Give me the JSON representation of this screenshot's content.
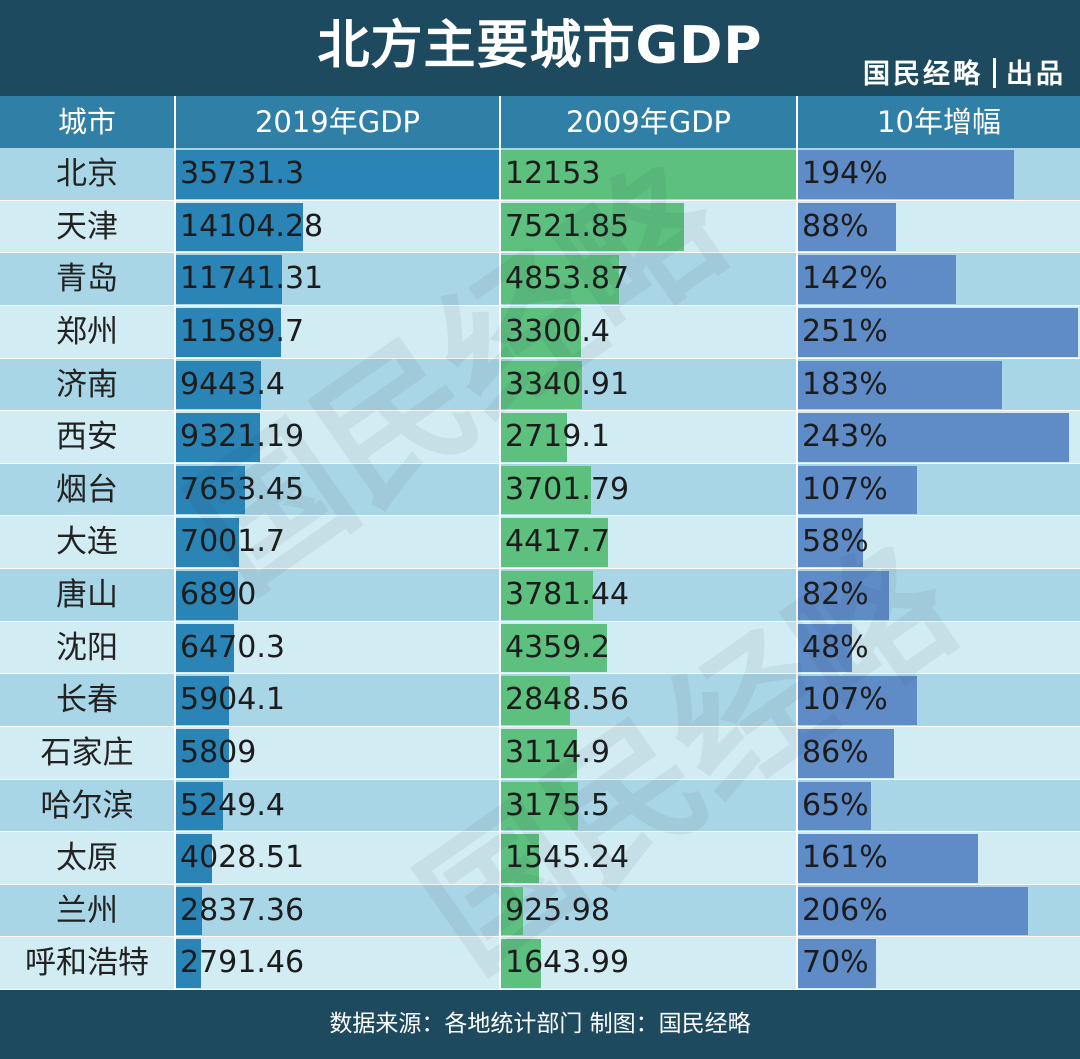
{
  "header": {
    "title": "北方主要城市GDP",
    "brand_left": "国民经略",
    "brand_right": "出品"
  },
  "footer": {
    "source": "数据来源：各地统计部门  制图：国民经略"
  },
  "colors": {
    "header_bg": "#1d4a5e",
    "column_header_bg": "#2f7fa6",
    "bar_2019": "#2b84b6",
    "bar_2009": "#5dc07f",
    "bar_growth": "#5f8bc7",
    "row_dark": "#a9d6e6",
    "row_light": "#d2ecf4"
  },
  "watermark_icon": "guomin-jinglue-watermark-icon",
  "chart_data": {
    "type": "table",
    "title": "北方主要城市GDP",
    "columns": [
      "城市",
      "2019年GDP",
      "2009年GDP",
      "10年增幅"
    ],
    "rows": [
      {
        "city": "北京",
        "gdp2019": 35731.3,
        "gdp2019_label": "35731.3",
        "gdp2009": 12153,
        "gdp2009_label": "12153",
        "growth": 194,
        "growth_label": "194%"
      },
      {
        "city": "天津",
        "gdp2019": 14104.28,
        "gdp2019_label": "14104.28",
        "gdp2009": 7521.85,
        "gdp2009_label": "7521.85",
        "growth": 88,
        "growth_label": "88%"
      },
      {
        "city": "青岛",
        "gdp2019": 11741.31,
        "gdp2019_label": "11741.31",
        "gdp2009": 4853.87,
        "gdp2009_label": "4853.87",
        "growth": 142,
        "growth_label": "142%"
      },
      {
        "city": "郑州",
        "gdp2019": 11589.7,
        "gdp2019_label": "11589.7",
        "gdp2009": 3300.4,
        "gdp2009_label": "3300.4",
        "growth": 251,
        "growth_label": "251%"
      },
      {
        "city": "济南",
        "gdp2019": 9443.4,
        "gdp2019_label": "9443.4",
        "gdp2009": 3340.91,
        "gdp2009_label": "3340.91",
        "growth": 183,
        "growth_label": "183%"
      },
      {
        "city": "西安",
        "gdp2019": 9321.19,
        "gdp2019_label": "9321.19",
        "gdp2009": 2719.1,
        "gdp2009_label": "2719.1",
        "growth": 243,
        "growth_label": "243%"
      },
      {
        "city": "烟台",
        "gdp2019": 7653.45,
        "gdp2019_label": "7653.45",
        "gdp2009": 3701.79,
        "gdp2009_label": "3701.79",
        "growth": 107,
        "growth_label": "107%"
      },
      {
        "city": "大连",
        "gdp2019": 7001.7,
        "gdp2019_label": "7001.7",
        "gdp2009": 4417.7,
        "gdp2009_label": "4417.7",
        "growth": 58,
        "growth_label": "58%"
      },
      {
        "city": "唐山",
        "gdp2019": 6890,
        "gdp2019_label": "6890",
        "gdp2009": 3781.44,
        "gdp2009_label": "3781.44",
        "growth": 82,
        "growth_label": "82%"
      },
      {
        "city": "沈阳",
        "gdp2019": 6470.3,
        "gdp2019_label": "6470.3",
        "gdp2009": 4359.2,
        "gdp2009_label": "4359.2",
        "growth": 48,
        "growth_label": "48%"
      },
      {
        "city": "长春",
        "gdp2019": 5904.1,
        "gdp2019_label": "5904.1",
        "gdp2009": 2848.56,
        "gdp2009_label": "2848.56",
        "growth": 107,
        "growth_label": "107%"
      },
      {
        "city": "石家庄",
        "gdp2019": 5809,
        "gdp2019_label": "5809",
        "gdp2009": 3114.9,
        "gdp2009_label": "3114.9",
        "growth": 86,
        "growth_label": "86%"
      },
      {
        "city": "哈尔滨",
        "gdp2019": 5249.4,
        "gdp2019_label": "5249.4",
        "gdp2009": 3175.5,
        "gdp2009_label": "3175.5",
        "growth": 65,
        "growth_label": "65%"
      },
      {
        "city": "太原",
        "gdp2019": 4028.51,
        "gdp2019_label": "4028.51",
        "gdp2009": 1545.24,
        "gdp2009_label": "1545.24",
        "growth": 161,
        "growth_label": "161%"
      },
      {
        "city": "兰州",
        "gdp2019": 2837.36,
        "gdp2019_label": "2837.36",
        "gdp2009": 925.98,
        "gdp2009_label": "925.98",
        "growth": 206,
        "growth_label": "206%"
      },
      {
        "city": "呼和浩特",
        "gdp2019": 2791.46,
        "gdp2019_label": "2791.46",
        "gdp2009": 1643.99,
        "gdp2009_label": "1643.99",
        "growth": 70,
        "growth_label": "70%"
      }
    ]
  }
}
